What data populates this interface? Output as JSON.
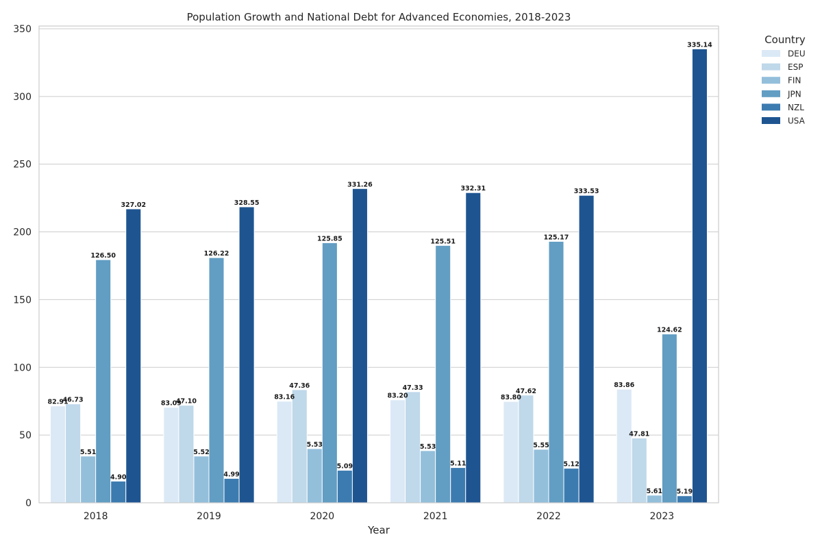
{
  "chart_data": {
    "type": "bar",
    "title": "Population Growth and National Debt for Advanced Economies, 2018-2023",
    "xlabel": "Year",
    "ylabel": "",
    "categories": [
      "2018",
      "2019",
      "2020",
      "2021",
      "2022",
      "2023"
    ],
    "ylim": [
      0,
      352
    ],
    "yticks": [
      0,
      50,
      100,
      150,
      200,
      250,
      300,
      350
    ],
    "grid": true,
    "legend": {
      "title": "Country",
      "placement": "outside-top-right"
    },
    "series": [
      {
        "name": "DEU",
        "color": "#dbe9f6",
        "values": [
          71.5,
          70.5,
          75.0,
          76.0,
          74.8,
          83.86
        ],
        "labels": [
          "82.91",
          "83.09",
          "83.16",
          "83.20",
          "83.80",
          "83.86"
        ]
      },
      {
        "name": "ESP",
        "color": "#bfd8ea",
        "values": [
          73.0,
          72.0,
          83.5,
          82.0,
          79.5,
          47.81
        ],
        "labels": [
          "46.73",
          "47.10",
          "47.36",
          "47.33",
          "47.62",
          "47.81"
        ]
      },
      {
        "name": "FIN",
        "color": "#93bfdb",
        "values": [
          34.5,
          34.5,
          40.0,
          38.5,
          39.5,
          5.61
        ],
        "labels": [
          "5.51",
          "5.52",
          "5.53",
          "5.53",
          "5.55",
          "5.61"
        ]
      },
      {
        "name": "JPN",
        "color": "#629dc3",
        "values": [
          179.5,
          181.0,
          192.0,
          190.0,
          193.0,
          124.62
        ],
        "labels": [
          "126.50",
          "126.22",
          "125.85",
          "125.51",
          "125.17",
          "124.62"
        ]
      },
      {
        "name": "NZL",
        "color": "#3c7bb0",
        "values": [
          16.0,
          18.0,
          24.0,
          26.0,
          25.5,
          5.19
        ],
        "labels": [
          "4.90",
          "4.99",
          "5.09",
          "5.11",
          "5.12",
          "5.19"
        ]
      },
      {
        "name": "USA",
        "color": "#1e5591",
        "values": [
          217.0,
          218.5,
          232.0,
          229.0,
          227.0,
          335.14
        ],
        "labels": [
          "327.02",
          "328.55",
          "331.26",
          "332.31",
          "333.53",
          "335.14"
        ]
      }
    ]
  }
}
